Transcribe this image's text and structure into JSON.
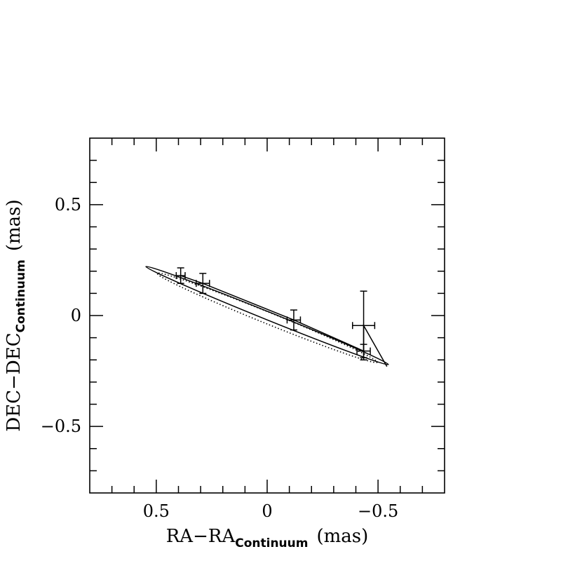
{
  "chart_data": {
    "type": "scatter",
    "xlabel": {
      "main": "RA−RA",
      "sub": "Continuum",
      "unit": "(mas)"
    },
    "ylabel": {
      "main": "DEC−DEC",
      "sub": "Continuum",
      "unit": "(mas)"
    },
    "xlim": [
      0.8,
      -0.8
    ],
    "ylim": [
      -0.8,
      0.8
    ],
    "xticks": [
      0.5,
      0,
      -0.5
    ],
    "yticks": [
      -0.5,
      0,
      0.5
    ],
    "xtick_labels": [
      "0.5",
      "0",
      "−0.5"
    ],
    "ytick_labels": [
      "−0.5",
      "0",
      "0.5"
    ],
    "minor_tick_step": 0.1,
    "grid": false,
    "points": [
      {
        "x": 0.39,
        "y": 0.18,
        "xerr": 0.02,
        "yerr": 0.035
      },
      {
        "x": 0.29,
        "y": 0.145,
        "xerr": 0.03,
        "yerr": 0.045
      },
      {
        "x": -0.12,
        "y": -0.02,
        "xerr": 0.03,
        "yerr": 0.045
      },
      {
        "x": -0.435,
        "y": -0.045,
        "xerr": 0.05,
        "yerr": 0.155
      },
      {
        "x": -0.435,
        "y": -0.16,
        "xerr": 0.03,
        "yerr": 0.03
      }
    ],
    "connecting_path": [
      {
        "x": 0.39,
        "y": 0.18
      },
      {
        "x": 0.29,
        "y": 0.145
      },
      {
        "x": -0.12,
        "y": -0.02
      },
      {
        "x": -0.435,
        "y": -0.16
      },
      {
        "x": -0.435,
        "y": -0.045
      },
      {
        "x": -0.54,
        "y": -0.23
      }
    ],
    "ellipse_solid": {
      "cx": 0.0,
      "cy": 0.0,
      "a": 0.59,
      "b": 0.018,
      "angle_deg": 22
    },
    "ellipse_dotted": {
      "cx": 0.0,
      "cy": -0.01,
      "a": 0.535,
      "b": 0.026,
      "angle_deg": 22
    }
  }
}
